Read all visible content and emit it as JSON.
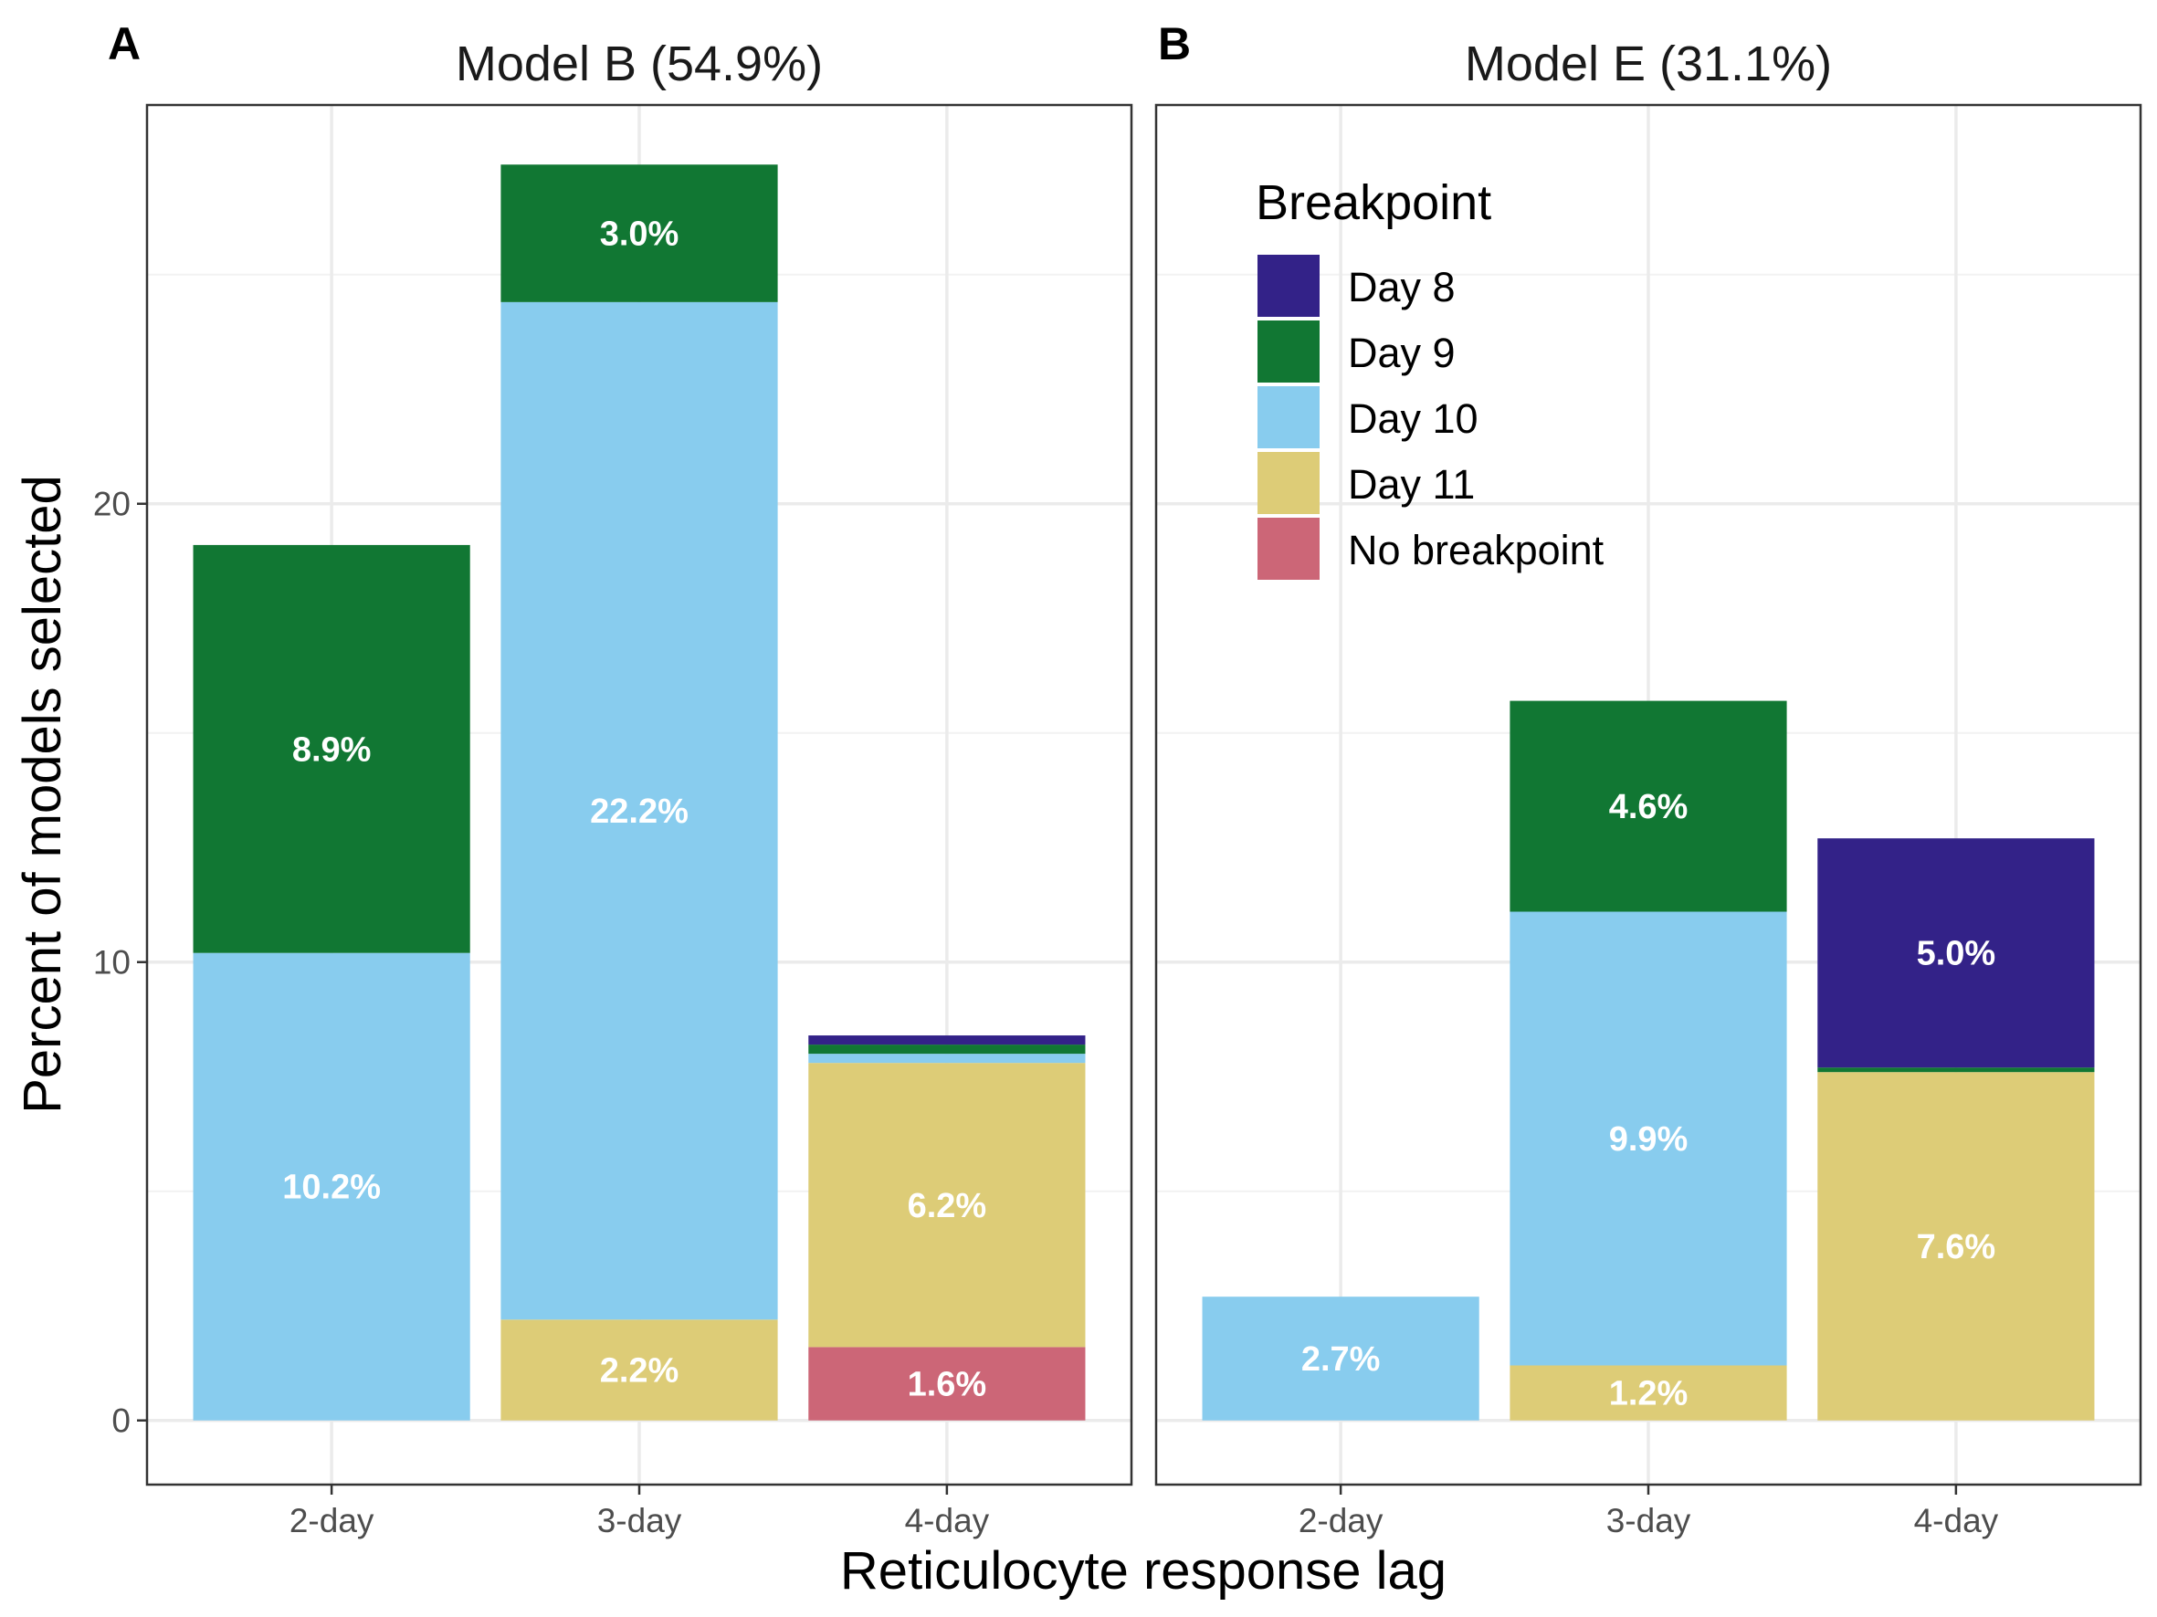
{
  "chart_data": [
    {
      "type": "bar",
      "stacked": true,
      "panel_letter": "A",
      "title": "Model B (54.9%)",
      "xlabel": "Reticulocyte response lag",
      "ylabel": "Percent of models selected",
      "categories": [
        "2-day",
        "3-day",
        "4-day"
      ],
      "ylim": [
        -1.4,
        28.7
      ],
      "yticks": [
        "0",
        "10",
        "20"
      ],
      "grid": true,
      "series": [
        {
          "name": "No breakpoint",
          "color": "#CC6677",
          "values": [
            0,
            0,
            1.6
          ],
          "labels": [
            "",
            "",
            "1.6%"
          ]
        },
        {
          "name": "Day 11",
          "color": "#DDCC77",
          "values": [
            0,
            2.2,
            6.2
          ],
          "labels": [
            "",
            "2.2%",
            "6.2%"
          ]
        },
        {
          "name": "Day 10",
          "color": "#88CCEE",
          "values": [
            10.2,
            22.2,
            0.2
          ],
          "labels": [
            "10.2%",
            "22.2%",
            ""
          ]
        },
        {
          "name": "Day 9",
          "color": "#117733",
          "values": [
            8.9,
            3.0,
            0.2
          ],
          "labels": [
            "8.9%",
            "3.0%",
            ""
          ]
        },
        {
          "name": "Day 8",
          "color": "#332288",
          "values": [
            0,
            0,
            0.2
          ],
          "labels": [
            "",
            "",
            ""
          ]
        }
      ]
    },
    {
      "type": "bar",
      "stacked": true,
      "panel_letter": "B",
      "title": "Model E (31.1%)",
      "xlabel": "Reticulocyte response lag",
      "ylabel": "Percent of models selected",
      "categories": [
        "2-day",
        "3-day",
        "4-day"
      ],
      "ylim": [
        -1.4,
        28.7
      ],
      "yticks": [
        "0",
        "10",
        "20"
      ],
      "grid": true,
      "legend": {
        "title": "Breakpoint",
        "position": "top-left",
        "items": [
          {
            "label": "Day 8",
            "color": "#332288"
          },
          {
            "label": "Day 9",
            "color": "#117733"
          },
          {
            "label": "Day 10",
            "color": "#88CCEE"
          },
          {
            "label": "Day 11",
            "color": "#DDCC77"
          },
          {
            "label": "No breakpoint",
            "color": "#CC6677"
          }
        ]
      },
      "series": [
        {
          "name": "No breakpoint",
          "color": "#CC6677",
          "values": [
            0,
            0,
            0
          ],
          "labels": [
            "",
            "",
            ""
          ]
        },
        {
          "name": "Day 11",
          "color": "#DDCC77",
          "values": [
            0,
            1.2,
            7.6
          ],
          "labels": [
            "",
            "1.2%",
            "7.6%"
          ]
        },
        {
          "name": "Day 10",
          "color": "#88CCEE",
          "values": [
            2.7,
            9.9,
            0
          ],
          "labels": [
            "2.7%",
            "9.9%",
            ""
          ]
        },
        {
          "name": "Day 9",
          "color": "#117733",
          "values": [
            0,
            4.6,
            0.1
          ],
          "labels": [
            "",
            "4.6%",
            ""
          ]
        },
        {
          "name": "Day 8",
          "color": "#332288",
          "values": [
            0,
            0,
            5.0
          ],
          "labels": [
            "",
            "",
            "5.0%"
          ]
        }
      ]
    }
  ]
}
